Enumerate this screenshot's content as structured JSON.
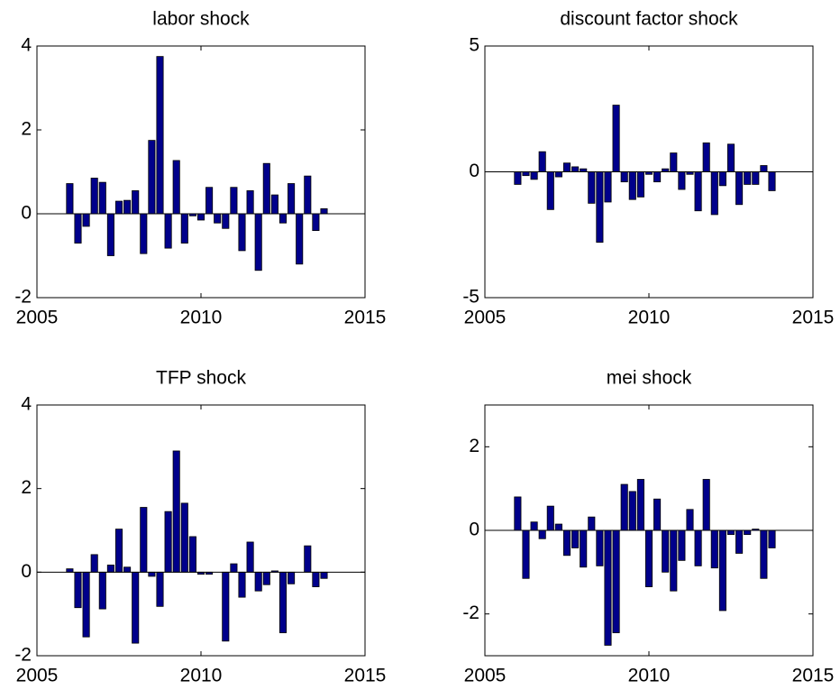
{
  "chart_data": [
    {
      "type": "bar",
      "title": "labor shock",
      "color": "#00008b",
      "x": [
        2006,
        2006.25,
        2006.5,
        2006.75,
        2007,
        2007.25,
        2007.5,
        2007.75,
        2008,
        2008.25,
        2008.5,
        2008.75,
        2009,
        2009.25,
        2009.5,
        2009.75,
        2010,
        2010.25,
        2010.5,
        2010.75,
        2011,
        2011.25,
        2011.5,
        2011.75,
        2012,
        2012.25,
        2012.5,
        2012.75,
        2013,
        2013.25,
        2013.5,
        2013.75
      ],
      "values": [
        0.72,
        -0.7,
        -0.3,
        0.85,
        0.75,
        -1.0,
        0.3,
        0.32,
        0.55,
        -0.95,
        1.75,
        3.75,
        -0.82,
        1.27,
        -0.7,
        -0.05,
        -0.15,
        0.63,
        -0.22,
        -0.35,
        0.63,
        -0.88,
        0.55,
        -1.35,
        1.2,
        0.45,
        -0.22,
        0.72,
        -1.2,
        0.9,
        -0.4,
        0.12
      ],
      "xlim": [
        2005,
        2015
      ],
      "xticks": [
        2005,
        2010,
        2015
      ],
      "ylim": [
        -2,
        4
      ],
      "yticks": [
        -2,
        0,
        2,
        4
      ]
    },
    {
      "type": "bar",
      "title": "discount factor shock",
      "color": "#00008b",
      "x": [
        2006,
        2006.25,
        2006.5,
        2006.75,
        2007,
        2007.25,
        2007.5,
        2007.75,
        2008,
        2008.25,
        2008.5,
        2008.75,
        2009,
        2009.25,
        2009.5,
        2009.75,
        2010,
        2010.25,
        2010.5,
        2010.75,
        2011,
        2011.25,
        2011.5,
        2011.75,
        2012,
        2012.25,
        2012.5,
        2012.75,
        2013,
        2013.25,
        2013.5,
        2013.75
      ],
      "values": [
        -0.5,
        -0.15,
        -0.3,
        0.8,
        -1.5,
        -0.2,
        0.35,
        0.2,
        0.12,
        -1.25,
        -2.8,
        -1.2,
        2.65,
        -0.4,
        -1.1,
        -1.0,
        -0.1,
        -0.4,
        0.12,
        0.75,
        -0.7,
        -0.1,
        -1.55,
        1.15,
        -1.7,
        -0.55,
        1.1,
        -1.3,
        -0.5,
        -0.5,
        0.25,
        -0.75
      ],
      "xlim": [
        2005,
        2015
      ],
      "xticks": [
        2005,
        2010,
        2015
      ],
      "ylim": [
        -5,
        5
      ],
      "yticks": [
        -5,
        0,
        5
      ]
    },
    {
      "type": "bar",
      "title": "TFP shock",
      "color": "#00008b",
      "x": [
        2006,
        2006.25,
        2006.5,
        2006.75,
        2007,
        2007.25,
        2007.5,
        2007.75,
        2008,
        2008.25,
        2008.5,
        2008.75,
        2009,
        2009.25,
        2009.5,
        2009.75,
        2010,
        2010.25,
        2010.5,
        2010.75,
        2011,
        2011.25,
        2011.5,
        2011.75,
        2012,
        2012.25,
        2012.5,
        2012.75,
        2013,
        2013.25,
        2013.5,
        2013.75
      ],
      "values": [
        0.08,
        -0.85,
        -1.55,
        0.42,
        -0.88,
        0.17,
        1.03,
        0.12,
        -1.7,
        1.55,
        -0.1,
        -0.82,
        1.45,
        2.9,
        1.65,
        0.85,
        -0.05,
        -0.05,
        0,
        -1.65,
        0.2,
        -0.6,
        0.72,
        -0.45,
        -0.3,
        0.03,
        -1.45,
        -0.28,
        0,
        0.63,
        -0.35,
        -0.15
      ],
      "xlim": [
        2005,
        2015
      ],
      "xticks": [
        2005,
        2010,
        2015
      ],
      "ylim": [
        -2,
        4
      ],
      "yticks": [
        -2,
        0,
        2,
        4
      ]
    },
    {
      "type": "bar",
      "title": "mei shock",
      "color": "#00008b",
      "x": [
        2006,
        2006.25,
        2006.5,
        2006.75,
        2007,
        2007.25,
        2007.5,
        2007.75,
        2008,
        2008.25,
        2008.5,
        2008.75,
        2009,
        2009.25,
        2009.5,
        2009.75,
        2010,
        2010.25,
        2010.5,
        2010.75,
        2011,
        2011.25,
        2011.5,
        2011.75,
        2012,
        2012.25,
        2012.5,
        2012.75,
        2013,
        2013.25,
        2013.5,
        2013.75
      ],
      "values": [
        0.8,
        -1.15,
        0.2,
        -0.2,
        0.58,
        0.15,
        -0.6,
        -0.42,
        -0.88,
        0.32,
        -0.85,
        -2.75,
        -2.45,
        1.1,
        0.93,
        1.22,
        -1.35,
        0.75,
        -1.0,
        -1.45,
        -0.72,
        0.5,
        -0.85,
        1.22,
        -0.9,
        -1.92,
        -0.1,
        -0.55,
        -0.1,
        0.03,
        -1.15,
        -0.42
      ],
      "xlim": [
        2005,
        2015
      ],
      "xticks": [
        2005,
        2010,
        2015
      ],
      "ylim": [
        -3,
        3
      ],
      "yticks": [
        -2,
        0,
        2
      ]
    }
  ]
}
